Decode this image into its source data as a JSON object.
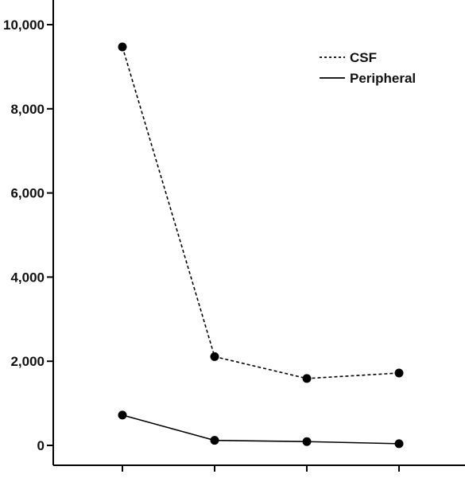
{
  "chart_data": {
    "type": "line",
    "title": "",
    "xlabel": "",
    "ylabel": "",
    "categories": [
      "",
      "",
      "",
      ""
    ],
    "ylim": [
      0,
      10000
    ],
    "yticks": [
      0,
      2000,
      4000,
      6000,
      8000,
      10000
    ],
    "ytick_labels": [
      "0",
      "2,000",
      "4,000",
      "6,000",
      "8,000",
      "10,000"
    ],
    "grid": false,
    "legend_position": "top-right",
    "series": [
      {
        "name": "CSF",
        "values": [
          9470,
          2110,
          1590,
          1720
        ],
        "line_style": "dashed",
        "color": "#000000"
      },
      {
        "name": "Peripheral",
        "values": [
          720,
          120,
          90,
          40
        ],
        "line_style": "solid",
        "color": "#000000"
      }
    ]
  }
}
